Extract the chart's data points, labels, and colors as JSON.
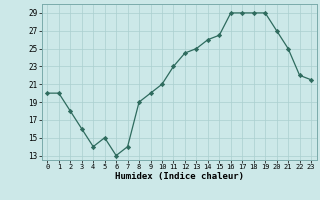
{
  "x": [
    0,
    1,
    2,
    3,
    4,
    5,
    6,
    7,
    8,
    9,
    10,
    11,
    12,
    13,
    14,
    15,
    16,
    17,
    18,
    19,
    20,
    21,
    22,
    23
  ],
  "y": [
    20,
    20,
    18,
    16,
    14,
    15,
    13,
    14,
    19,
    20,
    21,
    23,
    24.5,
    25,
    26,
    26.5,
    29,
    29,
    29,
    29,
    27,
    25,
    22,
    21.5
  ],
  "xlabel": "Humidex (Indice chaleur)",
  "ylim_min": 12.5,
  "ylim_max": 30,
  "xlim_min": -0.5,
  "xlim_max": 23.5,
  "yticks": [
    13,
    15,
    17,
    19,
    21,
    23,
    25,
    27,
    29
  ],
  "line_color": "#2e6b5e",
  "marker": "D",
  "marker_size": 2.2,
  "bg_color": "#cce8e8",
  "grid_color": "#aacfcf",
  "fig_bg": "#cce8e8",
  "xlabel_fontsize": 6.5,
  "ytick_fontsize": 5.5,
  "xtick_fontsize": 5.0
}
